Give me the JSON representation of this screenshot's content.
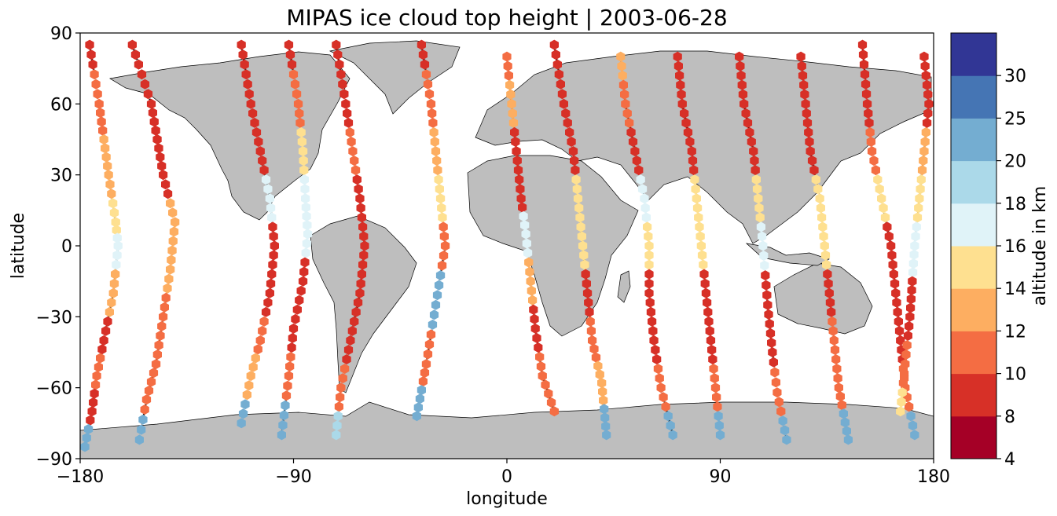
{
  "chart_data": {
    "type": "scatter",
    "title": "MIPAS ice cloud top height | 2003-06-28",
    "xlabel": "longitude",
    "ylabel": "latitude",
    "xlim": [
      -180,
      180
    ],
    "ylim": [
      -90,
      90
    ],
    "xticks": [
      "−180",
      "−90",
      "0",
      "90",
      "180"
    ],
    "xtick_values": [
      -180,
      -90,
      0,
      90,
      180
    ],
    "yticks": [
      "−90",
      "−60",
      "−30",
      "0",
      "30",
      "60",
      "90"
    ],
    "ytick_values": [
      -90,
      -60,
      -30,
      0,
      30,
      60,
      90
    ],
    "grid": false,
    "background": "world map, land in gray (#bebebe), coastlines black",
    "marker": "hexagon",
    "colorbar": {
      "label": "altitude in km",
      "boundaries": [
        4,
        8,
        10,
        12,
        14,
        16,
        18,
        20,
        25,
        30
      ],
      "tick_labels": [
        "4",
        "8",
        "10",
        "12",
        "14",
        "16",
        "18",
        "20",
        "25",
        "30"
      ],
      "colors": [
        "#a50026",
        "#d73027",
        "#f46d43",
        "#fdae61",
        "#fee090",
        "#e0f3f8",
        "#abd9e9",
        "#74add1",
        "#4575b4",
        "#313695"
      ]
    },
    "orbit_tracks": [
      {
        "lon_ascending_equator": -160,
        "points": [
          [
            -176,
            85,
            "8"
          ],
          [
            -172,
            60,
            "10"
          ],
          [
            -168,
            30,
            "12"
          ],
          [
            -165,
            10,
            "14"
          ],
          [
            -164,
            0,
            "16"
          ],
          [
            -166,
            -20,
            "12"
          ],
          [
            -170,
            -40,
            "8"
          ],
          [
            -173,
            -55,
            "10"
          ],
          [
            -175,
            -70,
            "8"
          ],
          [
            -178,
            -85,
            "20"
          ]
        ]
      },
      {
        "lon_ascending_equator": -140,
        "points": [
          [
            -158,
            85,
            "8"
          ],
          [
            -150,
            60,
            "8"
          ],
          [
            -145,
            30,
            "8"
          ],
          [
            -140,
            10,
            "12"
          ],
          [
            -142,
            -10,
            "12"
          ],
          [
            -145,
            -30,
            "10"
          ],
          [
            -148,
            -50,
            "10"
          ],
          [
            -152,
            -65,
            "10"
          ],
          [
            -155,
            -82,
            "20"
          ]
        ]
      },
      {
        "lon_ascending_equator": -100,
        "points": [
          [
            -112,
            85,
            "8"
          ],
          [
            -108,
            60,
            "8"
          ],
          [
            -104,
            40,
            "8"
          ],
          [
            -100,
            20,
            "16"
          ],
          [
            -98,
            0,
            "8"
          ],
          [
            -100,
            -20,
            "8"
          ],
          [
            -104,
            -40,
            "10"
          ],
          [
            -108,
            -55,
            "12"
          ],
          [
            -112,
            -75,
            "20"
          ]
        ]
      },
      {
        "lon_ascending_equator": -80,
        "points": [
          [
            -92,
            85,
            "8"
          ],
          [
            -88,
            60,
            "10"
          ],
          [
            -86,
            40,
            "14"
          ],
          [
            -85,
            20,
            "16"
          ],
          [
            -84,
            5,
            "16"
          ],
          [
            -86,
            -15,
            "8"
          ],
          [
            -90,
            -35,
            "8"
          ],
          [
            -92,
            -55,
            "10"
          ],
          [
            -95,
            -80,
            "20"
          ]
        ]
      },
      {
        "lon_ascending_equator": -60,
        "points": [
          [
            -72,
            85,
            "8"
          ],
          [
            -68,
            60,
            "8"
          ],
          [
            -65,
            40,
            "10"
          ],
          [
            -62,
            20,
            "8"
          ],
          [
            -60,
            0,
            "8"
          ],
          [
            -62,
            -20,
            "8"
          ],
          [
            -66,
            -40,
            "8"
          ],
          [
            -70,
            -60,
            "10"
          ],
          [
            -72,
            -80,
            "18"
          ]
        ]
      },
      {
        "lon_ascending_equator": -30,
        "points": [
          [
            -36,
            85,
            "8"
          ],
          [
            -32,
            60,
            "10"
          ],
          [
            -30,
            40,
            "12"
          ],
          [
            -28,
            20,
            "14"
          ],
          [
            -26,
            0,
            "10"
          ],
          [
            -30,
            -25,
            "20"
          ],
          [
            -34,
            -50,
            "10"
          ],
          [
            -38,
            -72,
            "20"
          ]
        ]
      },
      {
        "lon_ascending_equator": 10,
        "points": [
          [
            0,
            80,
            "10"
          ],
          [
            2,
            60,
            "12"
          ],
          [
            4,
            40,
            "8"
          ],
          [
            6,
            20,
            "8"
          ],
          [
            8,
            5,
            "16"
          ],
          [
            10,
            -15,
            "12"
          ],
          [
            12,
            -35,
            "8"
          ],
          [
            15,
            -55,
            "10"
          ],
          [
            20,
            -70,
            "10"
          ]
        ]
      },
      {
        "lon_ascending_equator": 30,
        "points": [
          [
            20,
            85,
            "8"
          ],
          [
            24,
            60,
            "8"
          ],
          [
            28,
            40,
            "8"
          ],
          [
            30,
            20,
            "14"
          ],
          [
            32,
            0,
            "14"
          ],
          [
            34,
            -20,
            "8"
          ],
          [
            36,
            -40,
            "10"
          ],
          [
            40,
            -58,
            "12"
          ],
          [
            42,
            -80,
            "20"
          ]
        ]
      },
      {
        "lon_ascending_equator": 60,
        "points": [
          [
            48,
            80,
            "12"
          ],
          [
            50,
            60,
            "10"
          ],
          [
            54,
            40,
            "8"
          ],
          [
            58,
            20,
            "16"
          ],
          [
            60,
            0,
            "14"
          ],
          [
            60,
            -20,
            "8"
          ],
          [
            62,
            -40,
            "8"
          ],
          [
            65,
            -60,
            "10"
          ],
          [
            70,
            -80,
            "20"
          ]
        ]
      },
      {
        "lon_ascending_equator": 85,
        "points": [
          [
            72,
            80,
            "8"
          ],
          [
            74,
            60,
            "8"
          ],
          [
            78,
            40,
            "8"
          ],
          [
            80,
            20,
            "14"
          ],
          [
            82,
            0,
            "14"
          ],
          [
            84,
            -20,
            "8"
          ],
          [
            86,
            -40,
            "8"
          ],
          [
            88,
            -60,
            "10"
          ],
          [
            90,
            -80,
            "20"
          ]
        ]
      },
      {
        "lon_ascending_equator": 110,
        "points": [
          [
            98,
            80,
            "8"
          ],
          [
            100,
            60,
            "8"
          ],
          [
            104,
            40,
            "8"
          ],
          [
            106,
            20,
            "14"
          ],
          [
            108,
            0,
            "16"
          ],
          [
            110,
            -25,
            "8"
          ],
          [
            112,
            -45,
            "8"
          ],
          [
            114,
            -62,
            "10"
          ],
          [
            118,
            -82,
            "20"
          ]
        ]
      },
      {
        "lon_ascending_equator": 130,
        "points": [
          [
            124,
            80,
            "8"
          ],
          [
            126,
            60,
            "8"
          ],
          [
            128,
            40,
            "8"
          ],
          [
            132,
            20,
            "14"
          ],
          [
            134,
            0,
            "14"
          ],
          [
            136,
            -20,
            "8"
          ],
          [
            138,
            -40,
            "10"
          ],
          [
            140,
            -60,
            "10"
          ],
          [
            144,
            -82,
            "20"
          ]
        ]
      },
      {
        "lon_ascending_equator": 160,
        "points": [
          [
            150,
            85,
            "8"
          ],
          [
            152,
            60,
            "8"
          ],
          [
            154,
            40,
            "10"
          ],
          [
            158,
            20,
            "14"
          ],
          [
            162,
            0,
            "8"
          ],
          [
            164,
            -20,
            "8"
          ],
          [
            166,
            -40,
            "8"
          ],
          [
            168,
            -60,
            "10"
          ],
          [
            172,
            -80,
            "20"
          ]
        ]
      },
      {
        "lon_ascending_equator": 175,
        "points": [
          [
            176,
            80,
            "8"
          ],
          [
            178,
            60,
            "8"
          ],
          [
            176,
            40,
            "12"
          ],
          [
            174,
            20,
            "14"
          ],
          [
            172,
            0,
            "16"
          ],
          [
            170,
            -30,
            "8"
          ],
          [
            168,
            -50,
            "10"
          ],
          [
            166,
            -70,
            "14"
          ]
        ]
      }
    ]
  }
}
